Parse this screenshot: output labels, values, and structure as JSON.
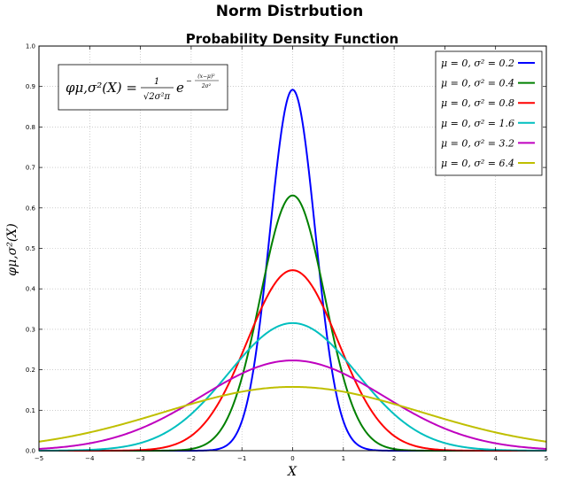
{
  "figure_title": "Norm Distrbution",
  "chart_data": {
    "type": "line",
    "title": "Probability Density Function",
    "xlabel": "X",
    "ylabel": "φμ,σ²(X)",
    "xlim": [
      -5,
      5
    ],
    "ylim": [
      0,
      1.0
    ],
    "grid": true,
    "legend_placement": "top-right",
    "xticks": [
      "−5",
      "−4",
      "−3",
      "−2",
      "−1",
      "0",
      "1",
      "2",
      "3",
      "4",
      "5"
    ],
    "yticks": [
      "0.0",
      "0.1",
      "0.2",
      "0.3",
      "0.4",
      "0.5",
      "0.6",
      "0.7",
      "0.8",
      "0.9",
      "1.0"
    ],
    "formula": {
      "lhs": "φμ,σ²(X) =",
      "numerator": "1",
      "denominator": "√2σ²π",
      "base": "e",
      "exp_sign": "−",
      "exp_num": "(x−μ)²",
      "exp_den": "2σ²"
    },
    "series": [
      {
        "name": "μ = 0, σ² = 0.2",
        "mu": 0,
        "variance": 0.2,
        "color": "#0000ff"
      },
      {
        "name": "μ = 0, σ² = 0.4",
        "mu": 0,
        "variance": 0.4,
        "color": "#008000"
      },
      {
        "name": "μ = 0, σ² = 0.8",
        "mu": 0,
        "variance": 0.8,
        "color": "#ff0000"
      },
      {
        "name": "μ = 0, σ² = 1.6",
        "mu": 0,
        "variance": 1.6,
        "color": "#00bfbf"
      },
      {
        "name": "μ = 0, σ² = 3.2",
        "mu": 0,
        "variance": 3.2,
        "color": "#bf00bf"
      },
      {
        "name": "μ = 0, σ² = 6.4",
        "mu": 0,
        "variance": 6.4,
        "color": "#bfbf00"
      }
    ]
  }
}
